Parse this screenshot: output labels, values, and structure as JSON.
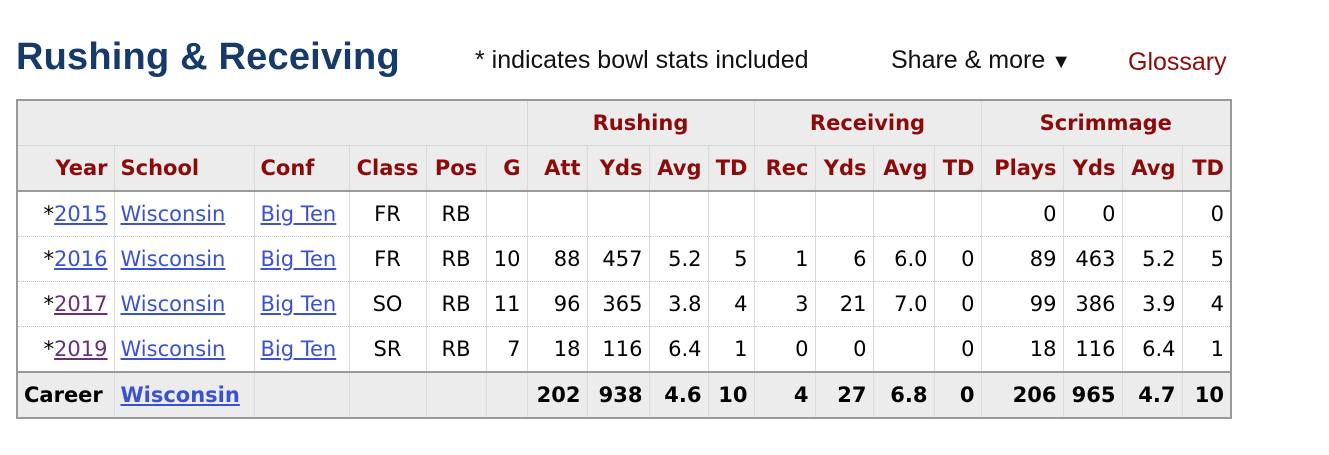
{
  "header": {
    "title": "Rushing & Receiving",
    "note": "* indicates bowl stats included",
    "share_label": "Share & more",
    "share_caret": "▼",
    "glossary_label": "Glossary"
  },
  "table": {
    "groups": {
      "rushing": "Rushing",
      "receiving": "Receiving",
      "scrimmage": "Scrimmage"
    },
    "columns": [
      "Year",
      "School",
      "Conf",
      "Class",
      "Pos",
      "G",
      "Att",
      "Yds",
      "Avg",
      "TD",
      "Rec",
      "Yds",
      "Avg",
      "TD",
      "Plays",
      "Yds",
      "Avg",
      "TD"
    ],
    "rows": [
      {
        "mark": "*",
        "year": "2015",
        "school": "Wisconsin",
        "conf": "Big Ten",
        "class": "FR",
        "pos": "RB",
        "g": "",
        "att": "",
        "ryds": "",
        "ravg": "",
        "rtd": "",
        "rec": "",
        "cyds": "",
        "cavg": "",
        "ctd": "",
        "plays": "0",
        "syds": "0",
        "savg": "",
        "std": "0"
      },
      {
        "mark": "*",
        "year": "2016",
        "school": "Wisconsin",
        "conf": "Big Ten",
        "class": "FR",
        "pos": "RB",
        "g": "10",
        "att": "88",
        "ryds": "457",
        "ravg": "5.2",
        "rtd": "5",
        "rec": "1",
        "cyds": "6",
        "cavg": "6.0",
        "ctd": "0",
        "plays": "89",
        "syds": "463",
        "savg": "5.2",
        "std": "5"
      },
      {
        "mark": "*",
        "year": "2017",
        "school": "Wisconsin",
        "conf": "Big Ten",
        "class": "SO",
        "pos": "RB",
        "g": "11",
        "att": "96",
        "ryds": "365",
        "ravg": "3.8",
        "rtd": "4",
        "rec": "3",
        "cyds": "21",
        "cavg": "7.0",
        "ctd": "0",
        "plays": "99",
        "syds": "386",
        "savg": "3.9",
        "std": "4"
      },
      {
        "mark": "*",
        "year": "2019",
        "school": "Wisconsin",
        "conf": "Big Ten",
        "class": "SR",
        "pos": "RB",
        "g": "7",
        "att": "18",
        "ryds": "116",
        "ravg": "6.4",
        "rtd": "1",
        "rec": "0",
        "cyds": "0",
        "cavg": "",
        "ctd": "0",
        "plays": "18",
        "syds": "116",
        "savg": "6.4",
        "std": "1"
      }
    ],
    "footer": {
      "label": "Career",
      "school": "Wisconsin",
      "att": "202",
      "ryds": "938",
      "ravg": "4.6",
      "rtd": "10",
      "rec": "4",
      "cyds": "27",
      "cavg": "6.8",
      "ctd": "0",
      "plays": "206",
      "syds": "965",
      "savg": "4.7",
      "std": "10"
    }
  },
  "colors": {
    "title": "#163a6b",
    "header_text": "#8b0a0a",
    "link": "#3a52d0",
    "visited_link": "#6a2f7a",
    "header_bg": "#ececec"
  }
}
